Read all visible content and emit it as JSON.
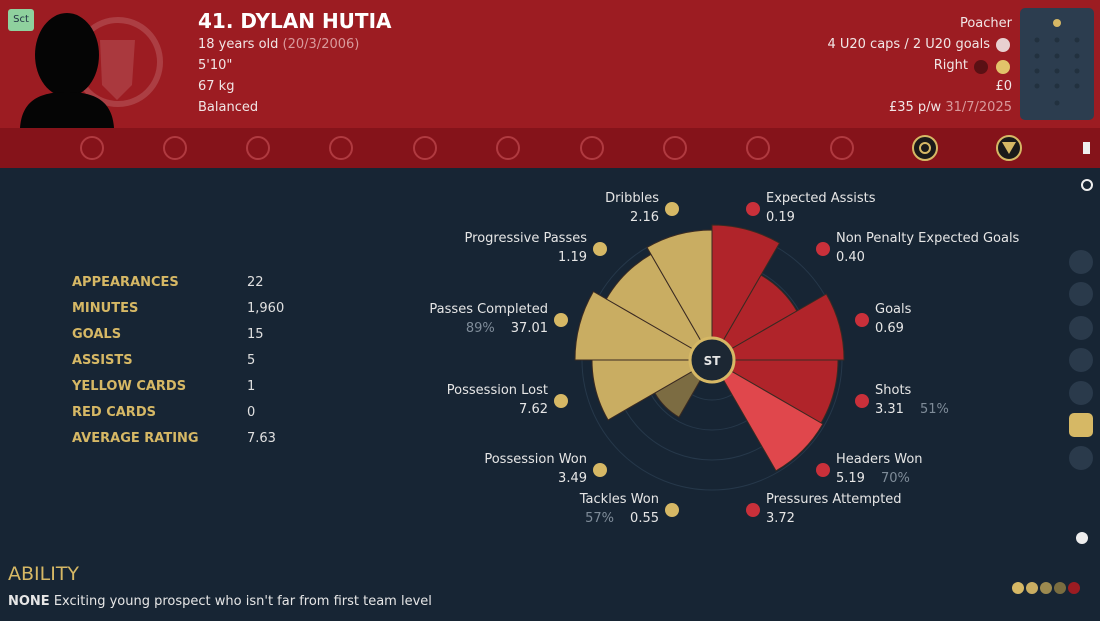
{
  "header": {
    "badge": "Sct",
    "name": "41. DYLAN HUTIA",
    "age": "18 years old",
    "dob": "(20/3/2006)",
    "height": "5'10\"",
    "weight": "67 kg",
    "personality": "Balanced",
    "position": "Poacher",
    "international": "4 U20 caps / 2 U20 goals",
    "foot": "Right",
    "value": "£0",
    "wage": "£35 p/w",
    "contract_end": "31/7/2025"
  },
  "stats": {
    "rows": [
      [
        "APPEARANCES",
        "22"
      ],
      [
        "MINUTES",
        "1,960"
      ],
      [
        "GOALS",
        "15"
      ],
      [
        "ASSISTS",
        "5"
      ],
      [
        "YELLOW CARDS",
        "1"
      ],
      [
        "RED CARDS",
        "0"
      ],
      [
        "AVERAGE RATING",
        "7.63"
      ]
    ]
  },
  "radar": {
    "center": "ST",
    "metrics": [
      {
        "label": "Expected Assists",
        "value": "0.19"
      },
      {
        "label": "Non Penalty Expected Goals",
        "value": "0.40"
      },
      {
        "label": "Goals",
        "value": "0.69"
      },
      {
        "label": "Shots",
        "value": "3.31",
        "percent": "51%"
      },
      {
        "label": "Headers Won",
        "value": "5.19",
        "percent": "70%"
      },
      {
        "label": "Pressures Attempted",
        "value": "3.72"
      },
      {
        "label": "Tackles Won",
        "value": "0.55",
        "percent": "57%"
      },
      {
        "label": "Possession Won",
        "value": "3.49"
      },
      {
        "label": "Possession Lost",
        "value": "7.62"
      },
      {
        "label": "Passes Completed",
        "value": "37.01",
        "percent": "89%"
      },
      {
        "label": "Progressive Passes",
        "value": "1.19"
      },
      {
        "label": "Dribbles",
        "value": "2.16"
      }
    ]
  },
  "ability": {
    "title": "ABILITY",
    "level": "NONE",
    "description": "Exciting young prospect who isn't far from first team level"
  }
}
